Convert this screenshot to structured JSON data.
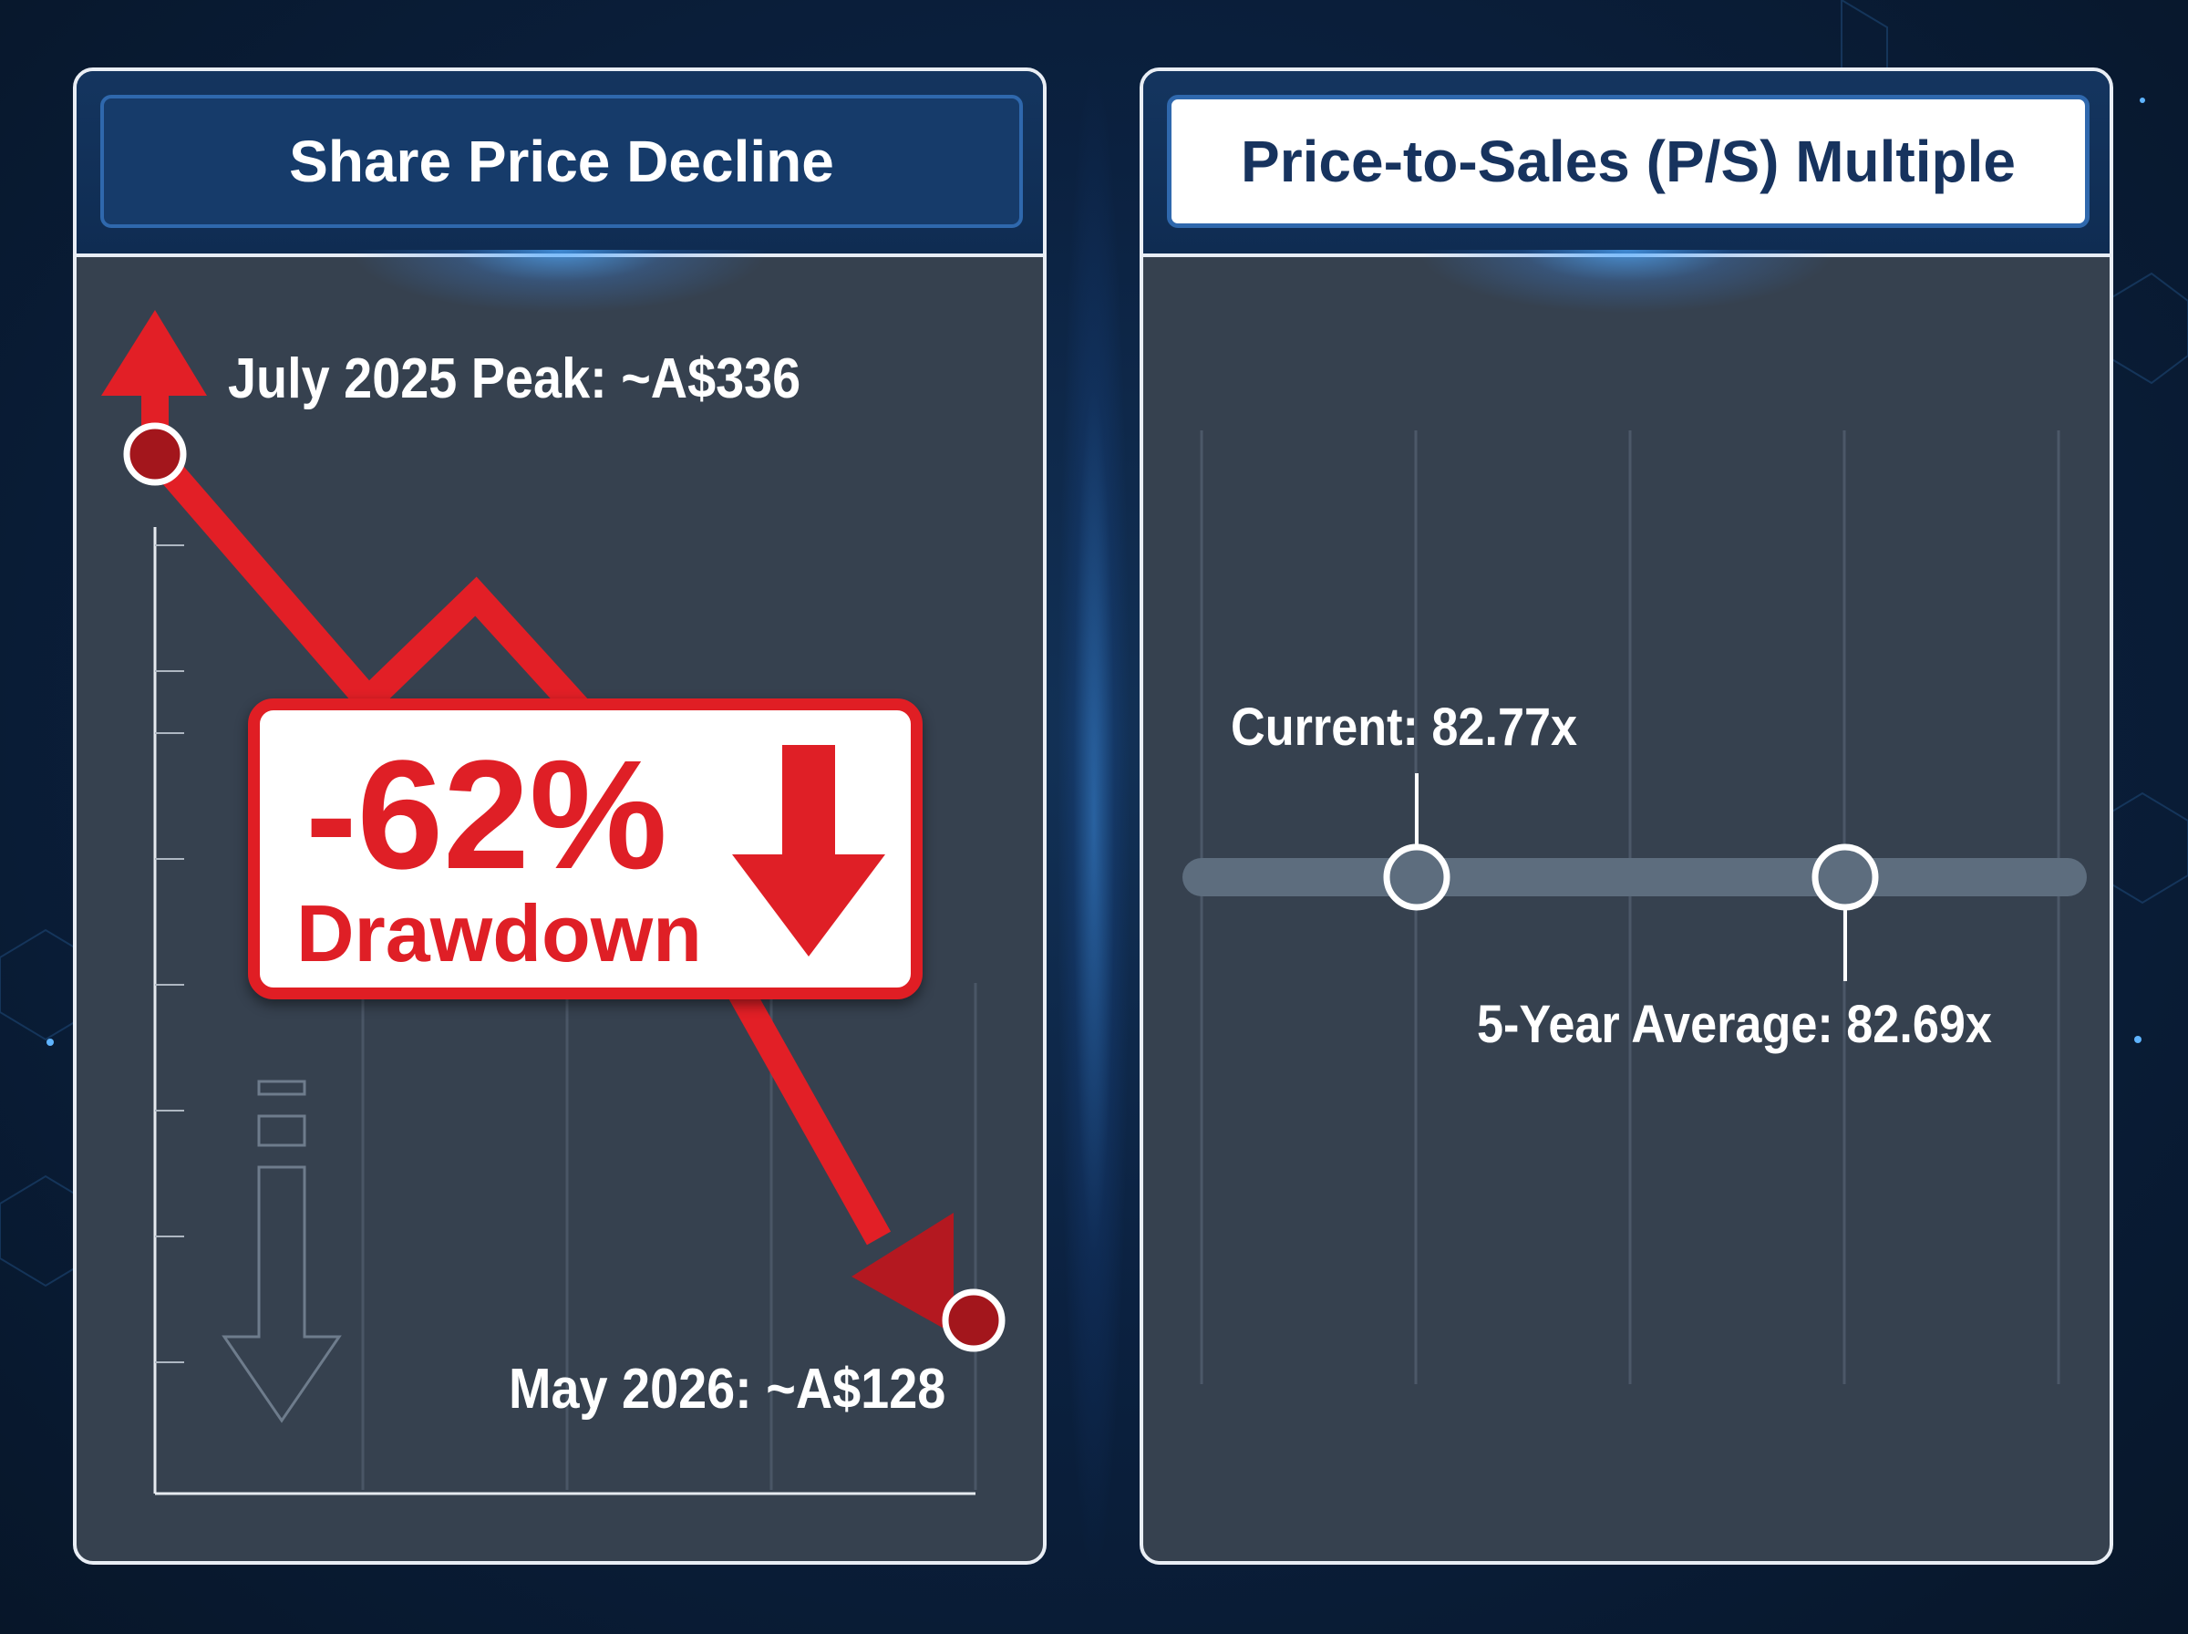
{
  "left_panel": {
    "title": "Share Price Decline",
    "peak_label": "July 2025 Peak: ~A$336",
    "end_label": "May 2026: ~A$128",
    "drawdown_pct": "-62%",
    "drawdown_word": "Drawdown"
  },
  "right_panel": {
    "title": "Price-to-Sales (P/S) Multiple",
    "current_label": "Current: 82.77x",
    "average_label": "5-Year Average: 82.69x"
  },
  "colors": {
    "accent_red": "#df1f26",
    "dark_red": "#a8161c",
    "panel_bg": "#36414f",
    "header_blue": "#14355f",
    "track": "#5d6d7e"
  },
  "chart_data": [
    {
      "type": "line",
      "title": "Share Price Decline",
      "x": [
        "July 2025",
        "May 2026"
      ],
      "series": [
        {
          "values": [
            336,
            128
          ]
        }
      ],
      "annotations": [
        "July 2025 Peak: ~A$336",
        "May 2026: ~A$128",
        "-62% Drawdown"
      ],
      "grid": true
    },
    {
      "type": "scatter",
      "title": "Price-to-Sales (P/S) Multiple",
      "points": [
        {
          "label": "Current",
          "value": 82.77
        },
        {
          "label": "5-Year Average",
          "value": 82.69
        }
      ],
      "annotations": [
        "Current: 82.77x",
        "5-Year Average: 82.69x"
      ],
      "grid": true
    }
  ]
}
